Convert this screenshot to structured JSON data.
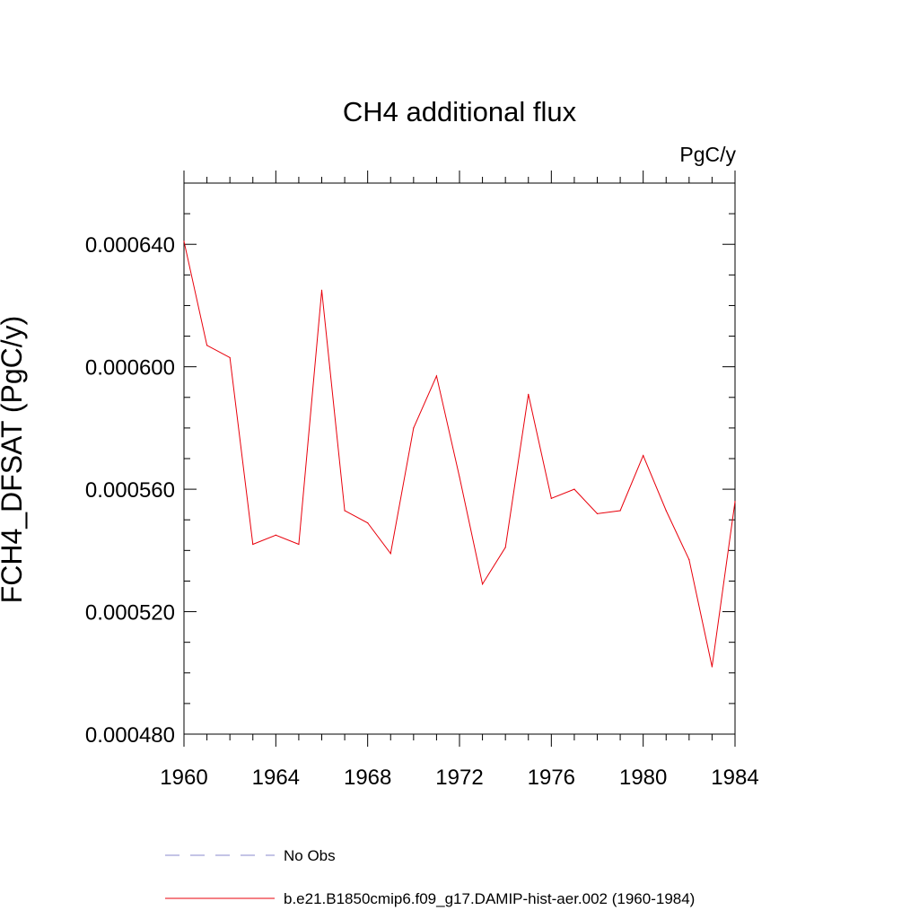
{
  "chart_data": {
    "type": "line",
    "title": "CH4 additional flux",
    "units_label": "PgC/y",
    "ylabel": "FCH4_DFSAT  (PgC/y)",
    "xlabel": "",
    "xlim": [
      1960,
      1984
    ],
    "ylim": [
      0.00048,
      0.00066
    ],
    "x_ticks": [
      1960,
      1964,
      1968,
      1972,
      1976,
      1980,
      1984
    ],
    "x_tick_labels": [
      "1960",
      "1964",
      "1968",
      "1972",
      "1976",
      "1980",
      "1984"
    ],
    "y_ticks": [
      0.00048,
      0.00052,
      0.00056,
      0.0006,
      0.00064
    ],
    "y_tick_labels": [
      "0.000480",
      "0.000520",
      "0.000560",
      "0.000600",
      "0.000640"
    ],
    "grid": false,
    "legend_position": "bottom",
    "legend": [
      {
        "label": "No Obs",
        "color": "#8888cc",
        "style": "dashed"
      },
      {
        "label": "b.e21.B1850cmip6.f09_g17.DAMIP-hist-aer.002 (1960-1984)",
        "color": "#e8000b",
        "style": "solid"
      }
    ],
    "series": [
      {
        "color": "#e8000b",
        "x": [
          1960,
          1961,
          1962,
          1963,
          1964,
          1965,
          1966,
          1967,
          1968,
          1969,
          1970,
          1971,
          1972,
          1973,
          1974,
          1975,
          1976,
          1977,
          1978,
          1979,
          1980,
          1981,
          1982,
          1983,
          1984
        ],
        "values": [
          0.000641,
          0.000607,
          0.000603,
          0.000542,
          0.000545,
          0.000542,
          0.000625,
          0.000553,
          0.000549,
          0.000539,
          0.00058,
          0.000597,
          0.000564,
          0.000529,
          0.000541,
          0.000591,
          0.000557,
          0.00056,
          0.000552,
          0.000553,
          0.000571,
          0.000553,
          0.000537,
          0.000502,
          0.000556
        ]
      }
    ]
  }
}
